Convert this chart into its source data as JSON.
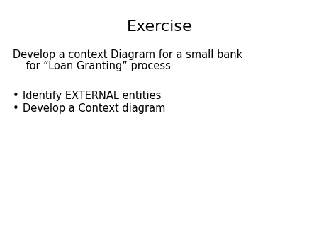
{
  "title": "Exercise",
  "title_fontsize": 16,
  "background_color": "#ffffff",
  "text_color": "#000000",
  "body_line1": "Develop a context Diagram for a small bank",
  "body_line2": "    for “Loan Granting” process",
  "body_fontsize": 10.5,
  "bullet_items": [
    "Identify EXTERNAL entities",
    "Develop a Context diagram"
  ],
  "bullet_fontsize": 10.5,
  "bullet_symbol": "•"
}
